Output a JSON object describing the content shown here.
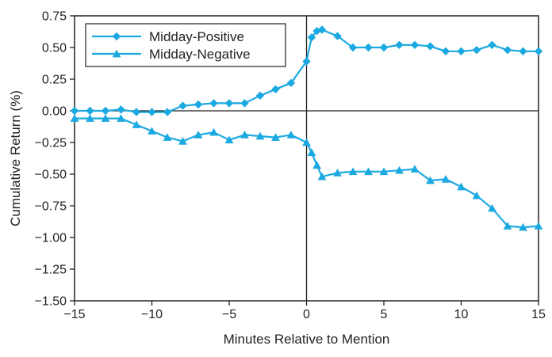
{
  "chart_data": {
    "type": "line",
    "title": "",
    "xlabel": "Minutes Relative to Mention",
    "ylabel": "Cumulative Return (%)",
    "xlim": [
      -15,
      15
    ],
    "ylim": [
      -1.5,
      0.75
    ],
    "xticks": [
      -15,
      -10,
      -5,
      0,
      5,
      10,
      15
    ],
    "xtick_labels": [
      "−15",
      "−10",
      "−5",
      "0",
      "5",
      "10",
      "15"
    ],
    "yticks": [
      0.75,
      0.5,
      0.25,
      0.0,
      -0.25,
      -0.5,
      -0.75,
      -1.0,
      -1.25,
      -1.5
    ],
    "ytick_labels": [
      "0.75",
      "0.50",
      "0.25",
      "0.00",
      "−0.25",
      "−0.50",
      "−0.75",
      "−1.00",
      "−1.25",
      "−1.50"
    ],
    "grid": false,
    "reference_lines": {
      "horizontal_at_y": 0,
      "vertical_at_x": 0
    },
    "legend_position": "top-left",
    "series": [
      {
        "name": "Midday-Positive",
        "marker": "diamond",
        "color": "#1ba9e1",
        "x": [
          -15,
          -14,
          -13,
          -12,
          -11,
          -10,
          -9,
          -8,
          -7,
          -6,
          -5,
          -4,
          -3,
          -2,
          -1,
          0,
          0.33,
          0.67,
          1,
          2,
          3,
          4,
          5,
          6,
          7,
          8,
          9,
          10,
          11,
          12,
          13,
          14,
          15
        ],
        "y": [
          0.0,
          0.0,
          0.0,
          0.01,
          -0.01,
          -0.01,
          -0.01,
          0.04,
          0.05,
          0.06,
          0.06,
          0.06,
          0.12,
          0.17,
          0.22,
          0.39,
          0.58,
          0.63,
          0.64,
          0.59,
          0.5,
          0.5,
          0.5,
          0.52,
          0.52,
          0.51,
          0.47,
          0.47,
          0.48,
          0.52,
          0.48,
          0.47,
          0.47
        ]
      },
      {
        "name": "Midday-Negative",
        "marker": "triangle",
        "color": "#1ba9e1",
        "x": [
          -15,
          -14,
          -13,
          -12,
          -11,
          -10,
          -9,
          -8,
          -7,
          -6,
          -5,
          -4,
          -3,
          -2,
          -1,
          0,
          0.33,
          0.67,
          1,
          2,
          3,
          4,
          5,
          6,
          7,
          8,
          9,
          10,
          11,
          12,
          13,
          14,
          15
        ],
        "y": [
          -0.06,
          -0.06,
          -0.06,
          -0.06,
          -0.11,
          -0.16,
          -0.21,
          -0.24,
          -0.19,
          -0.17,
          -0.23,
          -0.19,
          -0.2,
          -0.21,
          -0.19,
          -0.25,
          -0.33,
          -0.43,
          -0.52,
          -0.49,
          -0.48,
          -0.48,
          -0.48,
          -0.47,
          -0.46,
          -0.55,
          -0.54,
          -0.6,
          -0.67,
          -0.77,
          -0.91,
          -0.92,
          -0.91
        ]
      }
    ]
  }
}
